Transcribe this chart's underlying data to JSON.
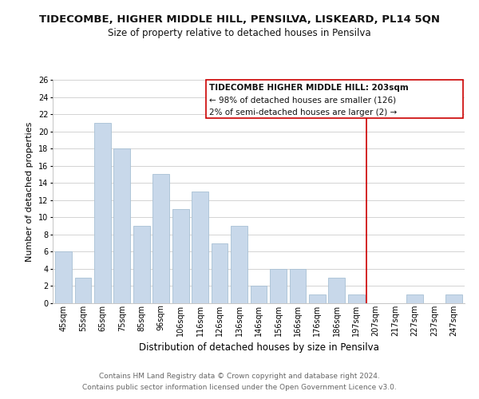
{
  "title": "TIDECOMBE, HIGHER MIDDLE HILL, PENSILVA, LISKEARD, PL14 5QN",
  "subtitle": "Size of property relative to detached houses in Pensilva",
  "xlabel": "Distribution of detached houses by size in Pensilva",
  "ylabel": "Number of detached properties",
  "bar_color": "#c8d8ea",
  "bar_edge_color": "#a8c0d4",
  "categories": [
    "45sqm",
    "55sqm",
    "65sqm",
    "75sqm",
    "85sqm",
    "96sqm",
    "106sqm",
    "116sqm",
    "126sqm",
    "136sqm",
    "146sqm",
    "156sqm",
    "166sqm",
    "176sqm",
    "186sqm",
    "197sqm",
    "207sqm",
    "217sqm",
    "227sqm",
    "237sqm",
    "247sqm"
  ],
  "values": [
    6,
    3,
    21,
    18,
    9,
    15,
    11,
    13,
    7,
    9,
    2,
    4,
    4,
    1,
    3,
    1,
    0,
    0,
    1,
    0,
    1
  ],
  "ylim": [
    0,
    26
  ],
  "yticks": [
    0,
    2,
    4,
    6,
    8,
    10,
    12,
    14,
    16,
    18,
    20,
    22,
    24,
    26
  ],
  "vline_color": "#cc0000",
  "annotation_title": "TIDECOMBE HIGHER MIDDLE HILL: 203sqm",
  "annotation_line1": "← 98% of detached houses are smaller (126)",
  "annotation_line2": "2% of semi-detached houses are larger (2) →",
  "annotation_box_color": "#ffffff",
  "annotation_box_edge": "#cc0000",
  "footer_line1": "Contains HM Land Registry data © Crown copyright and database right 2024.",
  "footer_line2": "Contains public sector information licensed under the Open Government Licence v3.0.",
  "background_color": "#ffffff",
  "grid_color": "#cccccc",
  "title_fontsize": 9.5,
  "subtitle_fontsize": 8.5,
  "xlabel_fontsize": 8.5,
  "ylabel_fontsize": 8,
  "tick_fontsize": 7,
  "annotation_title_fontsize": 7.5,
  "annotation_text_fontsize": 7.5,
  "footer_fontsize": 6.5
}
